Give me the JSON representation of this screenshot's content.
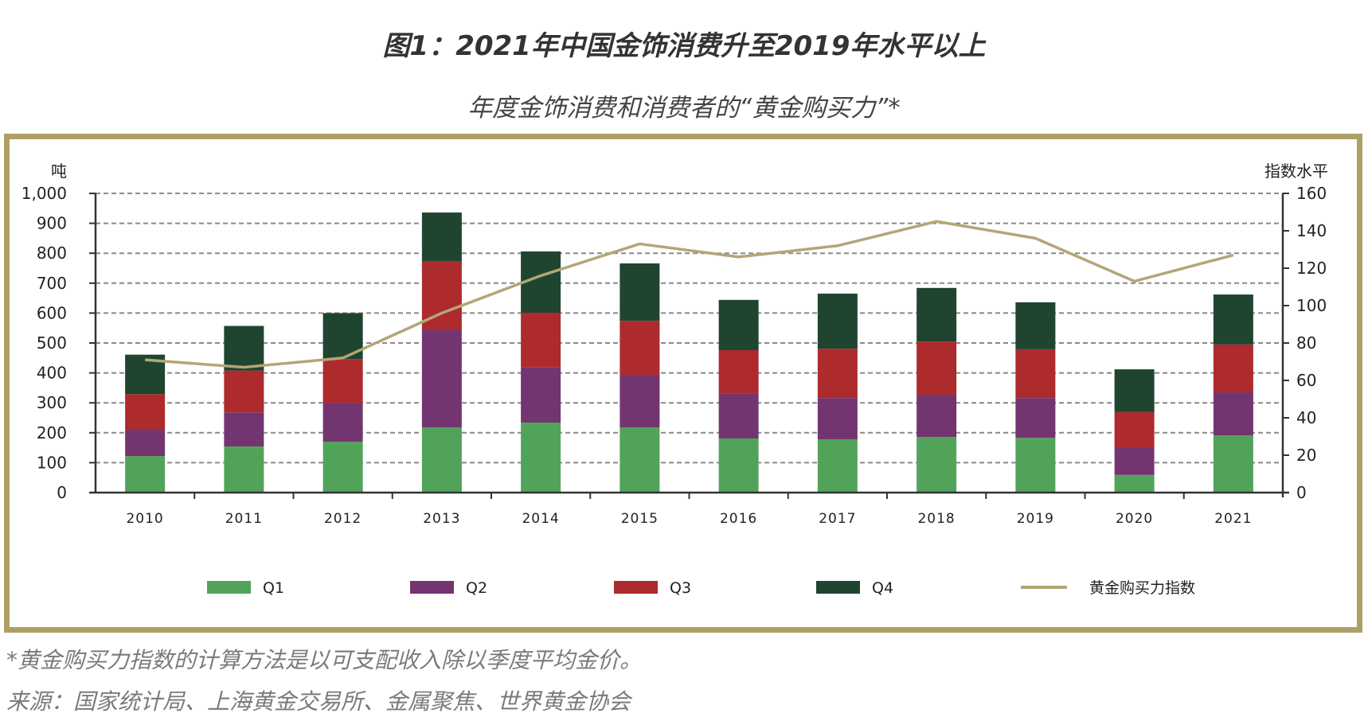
{
  "header": {
    "title": "图1：2021年中国金饰消费升至2019年水平以上",
    "subtitle": "年度金饰消费和消费者的“黄金购买力”*"
  },
  "footer": {
    "footnote": "*黄金购买力指数的计算方法是以可支配收入除以季度平均金价。",
    "source": "来源：国家统计局、上海黄金交易所、金属聚焦、世界黄金协会"
  },
  "colors": {
    "frame": "#ad9f66",
    "Q1": "#52a35a",
    "Q2": "#733570",
    "Q3": "#ad2a2d",
    "Q4": "#1f4530",
    "index_line": "#b3a677"
  },
  "chart_data": {
    "type": "bar",
    "stacked": true,
    "title": "图1：2021年中国金饰消费升至2019年水平以上",
    "subtitle": "年度金饰消费和消费者的“黄金购买力”*",
    "ylabel": "吨",
    "y2label": "指数水平",
    "ylim": [
      0,
      1000
    ],
    "y2lim": [
      0,
      160
    ],
    "yticks": [
      "0",
      "100",
      "200",
      "300",
      "400",
      "500",
      "600",
      "700",
      "800",
      "900",
      "1,000"
    ],
    "y2ticks": [
      "0",
      "20",
      "40",
      "60",
      "80",
      "100",
      "120",
      "140",
      "160"
    ],
    "grid": true,
    "legend_position": "bottom",
    "categories": [
      "2010",
      "2011",
      "2012",
      "2013",
      "2014",
      "2015",
      "2016",
      "2017",
      "2018",
      "2019",
      "2020",
      "2021"
    ],
    "series": [
      {
        "name": "Q1",
        "type": "bar",
        "values": [
          122,
          154,
          170,
          218,
          234,
          218,
          181,
          178,
          186,
          183,
          59,
          191
        ]
      },
      {
        "name": "Q2",
        "type": "bar",
        "values": [
          88,
          114,
          130,
          327,
          184,
          173,
          149,
          138,
          141,
          133,
          90,
          144
        ]
      },
      {
        "name": "Q3",
        "type": "bar",
        "values": [
          119,
          140,
          146,
          229,
          183,
          183,
          146,
          165,
          178,
          163,
          120,
          160
        ]
      },
      {
        "name": "Q4",
        "type": "bar",
        "values": [
          132,
          149,
          154,
          162,
          205,
          192,
          168,
          184,
          179,
          157,
          143,
          167
        ]
      },
      {
        "name": "黄金购买力指数",
        "type": "line",
        "axis": "y2",
        "values": [
          71,
          67,
          72,
          96,
          116,
          133,
          126,
          132,
          145,
          136,
          113,
          127
        ]
      }
    ]
  }
}
